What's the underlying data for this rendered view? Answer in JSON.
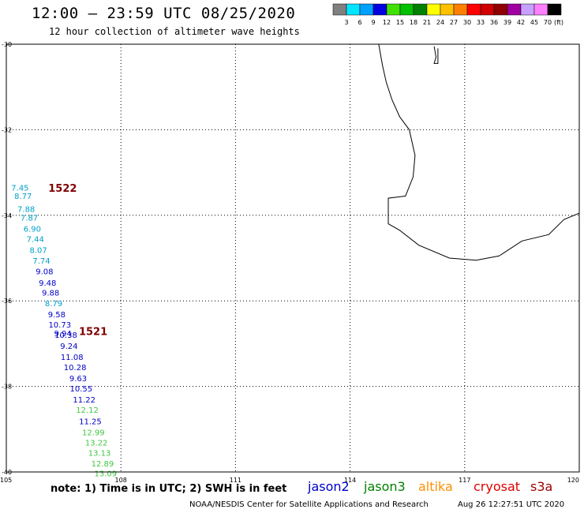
{
  "title": "12:00 – 23:59 UTC 08/25/2020",
  "subtitle": "12 hour collection of altimeter wave heights",
  "colorbar": {
    "colors": [
      "#808080",
      "#00e5ff",
      "#00a0ff",
      "#0000e0",
      "#40e000",
      "#00c000",
      "#008000",
      "#ffff00",
      "#ffc000",
      "#ff8000",
      "#ff0000",
      "#d00000",
      "#900000",
      "#a000a0",
      "#c8a0ff",
      "#ff80ff",
      "#000000"
    ],
    "labels": [
      "3",
      "6",
      "9",
      "12",
      "15",
      "18",
      "21",
      "24",
      "27",
      "30",
      "33",
      "36",
      "39",
      "42",
      "45",
      "70"
    ],
    "unit": "(ft)"
  },
  "axes": {
    "lon_ticks": [
      "105",
      "108",
      "111",
      "114",
      "117",
      "120"
    ],
    "lat_ticks": [
      "-30",
      "-32",
      "-34",
      "-36",
      "-38",
      "-40"
    ],
    "lon_range": [
      105,
      120
    ],
    "lat_range": [
      -40,
      -30
    ],
    "grid": true
  },
  "pass_ids": [
    {
      "label": "1522",
      "lon": 106.1,
      "lat": -33.45,
      "color": "#800000"
    },
    {
      "label": "1521",
      "lon": 106.9,
      "lat": -36.8,
      "color": "#800000"
    }
  ],
  "observations": [
    {
      "value": "7.45",
      "lon": 105.36,
      "lat": -33.42,
      "color": "#00a0c8"
    },
    {
      "value": "8.77",
      "lon": 105.44,
      "lat": -33.62,
      "color": "#00a0c8"
    },
    {
      "value": "7.88",
      "lon": 105.52,
      "lat": -33.92,
      "color": "#00a0c8"
    },
    {
      "value": "7.87",
      "lon": 105.6,
      "lat": -34.12,
      "color": "#00a0c8"
    },
    {
      "value": "6.90",
      "lon": 105.68,
      "lat": -34.38,
      "color": "#00a0c8"
    },
    {
      "value": "7.44",
      "lon": 105.76,
      "lat": -34.62,
      "color": "#00a0c8"
    },
    {
      "value": "8.07",
      "lon": 105.84,
      "lat": -34.88,
      "color": "#00a0c8"
    },
    {
      "value": "7.74",
      "lon": 105.92,
      "lat": -35.13,
      "color": "#00a0c8"
    },
    {
      "value": "9.08",
      "lon": 106.0,
      "lat": -35.38,
      "color": "#0000c8"
    },
    {
      "value": "9.48",
      "lon": 106.08,
      "lat": -35.65,
      "color": "#0000c8"
    },
    {
      "value": "9.88",
      "lon": 106.16,
      "lat": -35.88,
      "color": "#0000c8"
    },
    {
      "value": "8.79",
      "lon": 106.24,
      "lat": -36.13,
      "color": "#00a0c8"
    },
    {
      "value": "9.58",
      "lon": 106.32,
      "lat": -36.38,
      "color": "#0000c8"
    },
    {
      "value": "10.73",
      "lon": 106.4,
      "lat": -36.62,
      "color": "#0000c8"
    },
    {
      "value": "9.94",
      "lon": 106.48,
      "lat": -36.83,
      "color": "#0000c8"
    },
    {
      "value": "10.38",
      "lon": 106.56,
      "lat": -36.86,
      "color": "#0000c8"
    },
    {
      "value": "9.24",
      "lon": 106.64,
      "lat": -37.12,
      "color": "#0000c8"
    },
    {
      "value": "11.08",
      "lon": 106.72,
      "lat": -37.38,
      "color": "#0000c8"
    },
    {
      "value": "10.28",
      "lon": 106.8,
      "lat": -37.62,
      "color": "#0000c8"
    },
    {
      "value": "9.63",
      "lon": 106.88,
      "lat": -37.88,
      "color": "#0000c8"
    },
    {
      "value": "10.55",
      "lon": 106.96,
      "lat": -38.12,
      "color": "#0000c8"
    },
    {
      "value": "11.22",
      "lon": 107.04,
      "lat": -38.38,
      "color": "#0000c8"
    },
    {
      "value": "12.12",
      "lon": 107.12,
      "lat": -38.62,
      "color": "#40c840"
    },
    {
      "value": "11.25",
      "lon": 107.2,
      "lat": -38.88,
      "color": "#0000c8"
    },
    {
      "value": "12.99",
      "lon": 107.28,
      "lat": -39.14,
      "color": "#40c840"
    },
    {
      "value": "13.22",
      "lon": 107.36,
      "lat": -39.38,
      "color": "#40c840"
    },
    {
      "value": "13.13",
      "lon": 107.44,
      "lat": -39.62,
      "color": "#40c840"
    },
    {
      "value": "12.89",
      "lon": 107.52,
      "lat": -39.87,
      "color": "#40c840"
    },
    {
      "value": "13.09",
      "lon": 107.6,
      "lat": -40.1,
      "color": "#40c840"
    }
  ],
  "coastline": [
    [
      114.75,
      -30.0
    ],
    [
      114.85,
      -30.5
    ],
    [
      114.95,
      -30.9
    ],
    [
      115.1,
      -31.3
    ],
    [
      115.3,
      -31.7
    ],
    [
      115.55,
      -32.0
    ],
    [
      115.7,
      -32.6
    ],
    [
      115.65,
      -33.1
    ],
    [
      115.45,
      -33.55
    ],
    [
      115.0,
      -33.6
    ],
    [
      115.0,
      -34.2
    ],
    [
      115.3,
      -34.35
    ],
    [
      115.8,
      -34.7
    ],
    [
      116.6,
      -35.0
    ],
    [
      117.3,
      -35.05
    ],
    [
      117.9,
      -34.95
    ],
    [
      118.5,
      -34.6
    ],
    [
      119.2,
      -34.45
    ],
    [
      119.6,
      -34.1
    ],
    [
      120.0,
      -33.95
    ]
  ],
  "island": [
    [
      116.2,
      -30.05
    ],
    [
      116.25,
      -30.3
    ],
    [
      116.2,
      -30.45
    ],
    [
      116.3,
      -30.45
    ],
    [
      116.3,
      -30.1
    ]
  ],
  "note": "note: 1) Time is in UTC; 2) SWH is in feet",
  "satellites": [
    {
      "name": "jason2",
      "color": "#0000c8"
    },
    {
      "name": "jason3",
      "color": "#008000"
    },
    {
      "name": "altika",
      "color": "#ff9000"
    },
    {
      "name": "cryosat",
      "color": "#e00000"
    },
    {
      "name": "s3a",
      "color": "#a00000"
    }
  ],
  "credit": "NOAA/NESDIS Center for Satellite Applications and Research",
  "timestamp": "Aug 26 12:27:51 UTC 2020"
}
